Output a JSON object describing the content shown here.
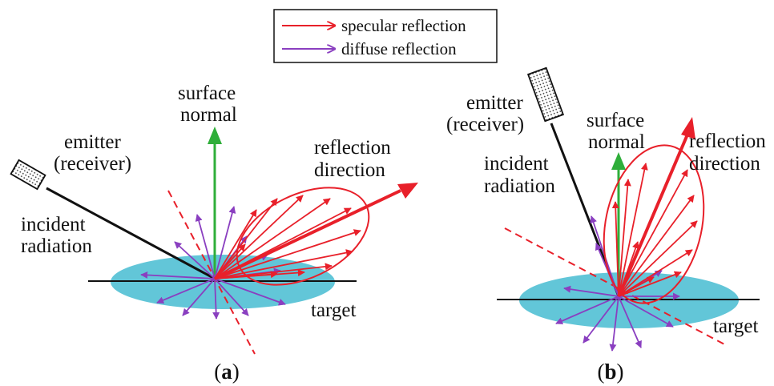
{
  "legend": {
    "specular": "specular reflection",
    "diffuse": "diffuse reflection"
  },
  "colors": {
    "specular": "#e8202a",
    "diffuse": "#8a3fc0",
    "normal": "#2fae3a",
    "target": "#62c6d8",
    "incident": "#111111"
  },
  "panel_a": {
    "label_surface_1": "surface",
    "label_surface_2": "normal",
    "label_emitter_1": "emitter",
    "label_emitter_2": "(receiver)",
    "label_incident_1": "incident",
    "label_incident_2": "radiation",
    "label_reflection_1": "reflection",
    "label_reflection_2": "direction",
    "label_target": "target",
    "caption_open": "(",
    "caption_letter": "a",
    "caption_close": ")"
  },
  "panel_b": {
    "label_emitter_1": "emitter",
    "label_emitter_2": "(receiver)",
    "label_surface_1": "surface",
    "label_surface_2": "normal",
    "label_reflection_1": "reflection",
    "label_reflection_2": "direction",
    "label_incident_1": "incident",
    "label_incident_2": "radiation",
    "label_target": "target",
    "caption_open": "(",
    "caption_letter": "b",
    "caption_close": ")"
  }
}
